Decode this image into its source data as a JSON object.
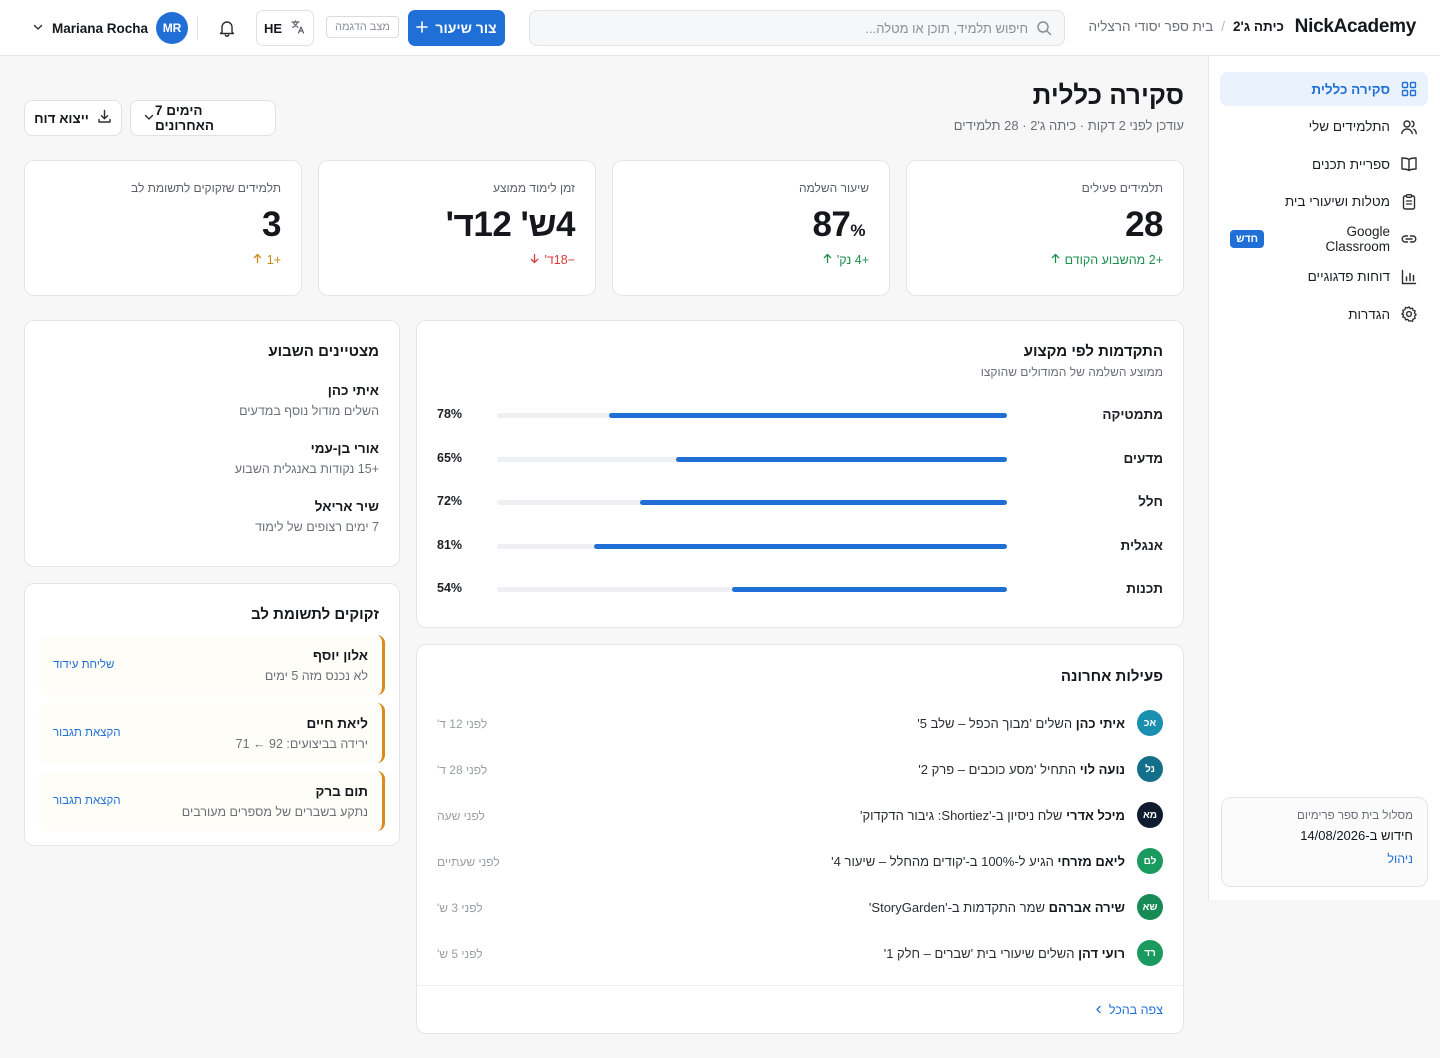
{
  "header": {
    "logo": "NickAcademy",
    "breadcrumb": {
      "school": "בית ספר יסודי הרצליה",
      "separator": "/",
      "class": "כיתה ג'2"
    },
    "search_placeholder": "חיפוש תלמיד, תוכן או מטלה...",
    "create_lesson_label": "צור שיעור",
    "demo_badge": "מצב הדגמה",
    "language": "HE",
    "user_name": "Mariana Rocha",
    "user_initials": "MR"
  },
  "sidebar": {
    "items": [
      {
        "label": "סקירה כללית",
        "icon": "grid-icon",
        "active": true
      },
      {
        "label": "התלמידים שלי",
        "icon": "users-icon"
      },
      {
        "label": "ספריית תכנים",
        "icon": "book-icon"
      },
      {
        "label": "מטלות ושיעורי בית",
        "icon": "clipboard-icon"
      },
      {
        "label": "Google Classroom",
        "icon": "link-icon",
        "badge": "חדש"
      },
      {
        "label": "דוחות פדגוגיים",
        "icon": "bar-chart-icon"
      },
      {
        "label": "הגדרות",
        "icon": "gear-icon"
      }
    ],
    "plan": {
      "title": "מסלול בית ספר פרימיום",
      "renewal": "חידוש ב-14/08/2026",
      "manage": "ניהול"
    }
  },
  "main": {
    "title": "סקירה כללית",
    "subtitle": "עודכן לפני 2 דקות · כיתה ג'2 · 28 תלמידים",
    "date_range": "7 הימים האחרונים",
    "export_label": "ייצוא דוח",
    "stats": [
      {
        "label": "תלמידים פעילים",
        "value": "28",
        "unit": "",
        "delta": "+2 מהשבוע הקודם",
        "trend": "up"
      },
      {
        "label": "שיעור השלמה",
        "value": "87",
        "unit": "%",
        "delta": "+4 נק'",
        "trend": "up"
      },
      {
        "label": "זמן לימוד ממוצע",
        "value": "4ש' 12ד'",
        "unit": "",
        "delta": "−18ד'",
        "trend": "down"
      },
      {
        "label": "תלמידים שזקוקים לתשומת לב",
        "value": "3",
        "unit": "",
        "delta": "+1",
        "trend": "warn"
      }
    ],
    "progress": {
      "title": "התקדמות לפי מקצוע",
      "subtitle": "ממוצע השלמה של המודולים שהוקצו",
      "subjects": [
        {
          "name": "מתמטיקה",
          "value": 78,
          "label": "78%"
        },
        {
          "name": "מדעים",
          "value": 65,
          "label": "65%"
        },
        {
          "name": "חלל",
          "value": 72,
          "label": "72%"
        },
        {
          "name": "אנגלית",
          "value": 81,
          "label": "81%"
        },
        {
          "name": "תכנות",
          "value": 54,
          "label": "54%"
        }
      ]
    },
    "top_students": {
      "title": "מצטיינים השבוע",
      "items": [
        {
          "name": "איתי כהן",
          "desc": "השלים מודול נוסף במדעים"
        },
        {
          "name": "אורי בן-עמי",
          "desc": "+15 נקודות באנגלית השבוע"
        },
        {
          "name": "שיר אריאל",
          "desc": "7 ימים רצופים של לימוד"
        }
      ]
    },
    "attention": {
      "title": "זקוקים לתשומת לב",
      "items": [
        {
          "name": "אלון יוסף",
          "desc": "לא נכנס מזה 5 ימים",
          "action": "שליחת עידוד"
        },
        {
          "name": "ליאת חיים",
          "desc": "ירידה בביצועים: 92 ← 71",
          "action": "הקצאת תגבור"
        },
        {
          "name": "תום ברק",
          "desc": "נתקע בשברים של מספרים מעורבים",
          "action": "הקצאת תגבור"
        }
      ]
    },
    "activity": {
      "title": "פעילות אחרונה",
      "items": [
        {
          "initials": "אכ",
          "color": "#1a8fb0",
          "name": "איתי כהן",
          "text": "השלים 'מבוך הכפל – שלב 5'",
          "time": "לפני 12 ד'"
        },
        {
          "initials": "נל",
          "color": "#14708a",
          "name": "נועה לוי",
          "text": "התחיל 'מסע כוכבים – פרק 2'",
          "time": "לפני 28 ד'"
        },
        {
          "initials": "מא",
          "color": "#0f1b2e",
          "name": "מיכל אדרי",
          "text": "שלח ניסיון ב-'Shortiez: גיבור הדקדוק'",
          "time": "לפני שעה"
        },
        {
          "initials": "לם",
          "color": "#1a9a5e",
          "name": "ליאם מזרחי",
          "text": "הגיע ל-100% ב-'קודים מהחלל – שיעור 4'",
          "time": "לפני שעתיים"
        },
        {
          "initials": "שא",
          "color": "#178a55",
          "name": "שירה אברהם",
          "text": "שמר התקדמות ב-'StoryGarden'",
          "time": "לפני 3 ש'"
        },
        {
          "initials": "רד",
          "color": "#1a9a5e",
          "name": "רועי דהן",
          "text": "השלים שיעורי בית 'שברים – חלק 1'",
          "time": "לפני 5 ש'"
        }
      ],
      "view_all": "צפה בהכל"
    }
  }
}
